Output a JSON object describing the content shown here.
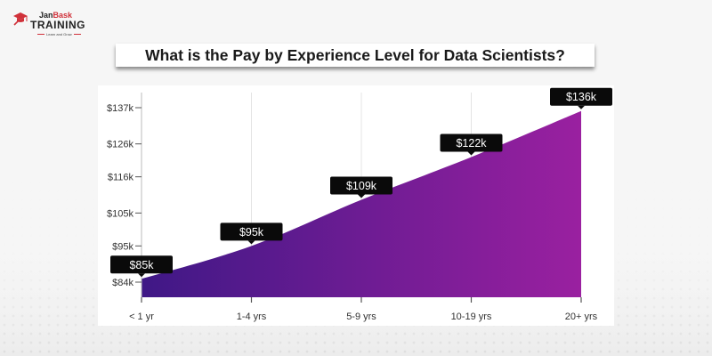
{
  "brand": {
    "name_part1": "Jan",
    "name_part2": "Bask",
    "name_line2": "TRAINING",
    "tagline": "Learn and Grow",
    "accent_color": "#d0313a",
    "icon": "graduation-cap-icon"
  },
  "title": "What is the Pay by Experience Level for Data Scientists?",
  "chart_data": {
    "type": "area",
    "title": "What is the Pay by Experience Level for Data Scientists?",
    "xlabel": "",
    "ylabel": "",
    "categories": [
      "< 1 yr",
      "1-4 yrs",
      "5-9 yrs",
      "10-19 yrs",
      "20+ yrs"
    ],
    "values": [
      85,
      95,
      109,
      122,
      136
    ],
    "value_labels": [
      "$85k",
      "$95k",
      "$109k",
      "$122k",
      "$136k"
    ],
    "unit": "USD thousands",
    "y_ticks": [
      84,
      95,
      105,
      116,
      126,
      137
    ],
    "y_tick_labels": [
      "$84k",
      "$95k",
      "$105k",
      "$116k",
      "$126k",
      "$137k"
    ],
    "ylim": [
      81,
      138
    ],
    "grid": {
      "vertical": true,
      "horizontal": false
    },
    "legend": null,
    "fill_gradient": [
      "#3f1886",
      "#9a20a0"
    ],
    "tooltip_color": "#0a0a0a"
  }
}
